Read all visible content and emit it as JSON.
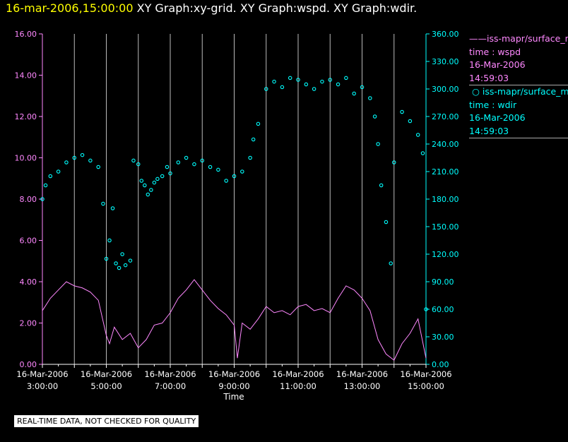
{
  "header": {
    "timestamp": "16-mar-2006,15:00:00",
    "graphs": "XY Graph:xy-grid.  XY Graph:wspd.  XY Graph:wdir."
  },
  "legend": [
    {
      "line1": "iss-mapr/surface_m",
      "line2": "time : wspd",
      "line3": "16-Mar-2006",
      "line4": "14:59:03",
      "color": "#ff88ff",
      "marker": "line"
    },
    {
      "line1": "iss-mapr/surface_m",
      "line2": "time : wdir",
      "line3": "16-Mar-2006",
      "line4": "14:59:03",
      "color": "#00ffff",
      "marker": "circle"
    }
  ],
  "note": "REAL-TIME DATA, NOT CHECKED FOR QUALITY",
  "chart_data": {
    "type": "scatter",
    "xlabel": "Time",
    "x_ticks": [
      {
        "date": "16-Mar-2006",
        "time": "3:00:00"
      },
      {
        "date": "16-Mar-2006",
        "time": "5:00:00"
      },
      {
        "date": "16-Mar-2006",
        "time": "7:00:00"
      },
      {
        "date": "16-Mar-2006",
        "time": "9:00:00"
      },
      {
        "date": "16-Mar-2006",
        "time": "11:00:00"
      },
      {
        "date": "16-Mar-2006",
        "time": "13:00:00"
      },
      {
        "date": "16-Mar-2006",
        "time": "15:00:00"
      }
    ],
    "xlim_hours": [
      3.0,
      15.0
    ],
    "grid": "vertical lines at each hour",
    "left_axis": {
      "ylim": [
        0,
        16
      ],
      "ticks": [
        "0.00",
        "2.00",
        "4.00",
        "6.00",
        "8.00",
        "10.00",
        "12.00",
        "14.00",
        "16.00"
      ],
      "color": "#ff88ff"
    },
    "right_axis": {
      "ylim": [
        0,
        360
      ],
      "ticks": [
        "0.00",
        "30.00",
        "60.00",
        "90.00",
        "120.00",
        "150.00",
        "180.00",
        "210.00",
        "240.00",
        "270.00",
        "300.00",
        "330.00",
        "360.00"
      ],
      "color": "#00ffff"
    },
    "series": [
      {
        "axis": "left",
        "style": "line",
        "color": "#ff88ff",
        "x": [
          3.0,
          3.25,
          3.5,
          3.75,
          4.0,
          4.25,
          4.5,
          4.75,
          5.0,
          5.1,
          5.25,
          5.5,
          5.75,
          6.0,
          6.25,
          6.5,
          6.75,
          7.0,
          7.25,
          7.5,
          7.75,
          8.0,
          8.25,
          8.5,
          8.75,
          9.0,
          9.1,
          9.25,
          9.5,
          9.75,
          10.0,
          10.25,
          10.5,
          10.75,
          11.0,
          11.25,
          11.5,
          11.75,
          12.0,
          12.25,
          12.5,
          12.75,
          13.0,
          13.25,
          13.5,
          13.75,
          14.0,
          14.25,
          14.5,
          14.75,
          15.0
        ],
        "y": [
          2.6,
          3.2,
          3.6,
          4.0,
          3.8,
          3.7,
          3.5,
          3.1,
          1.4,
          1.0,
          1.8,
          1.2,
          1.5,
          0.8,
          1.2,
          1.9,
          2.0,
          2.5,
          3.2,
          3.6,
          4.1,
          3.6,
          3.1,
          2.7,
          2.4,
          1.9,
          0.3,
          2.0,
          1.7,
          2.2,
          2.8,
          2.5,
          2.6,
          2.4,
          2.8,
          2.9,
          2.6,
          2.7,
          2.5,
          3.2,
          3.8,
          3.6,
          3.2,
          2.6,
          1.2,
          0.5,
          0.2,
          1.0,
          1.5,
          2.2,
          0.3
        ]
      },
      {
        "axis": "right",
        "style": "circle",
        "color": "#00ffff",
        "x": [
          3.0,
          3.1,
          3.25,
          3.5,
          3.75,
          4.0,
          4.25,
          4.5,
          4.75,
          4.9,
          5.0,
          5.1,
          5.2,
          5.3,
          5.4,
          5.5,
          5.6,
          5.75,
          5.85,
          6.0,
          6.1,
          6.2,
          6.3,
          6.4,
          6.5,
          6.6,
          6.75,
          6.9,
          7.0,
          7.25,
          7.5,
          7.75,
          8.0,
          8.25,
          8.5,
          8.75,
          9.0,
          9.25,
          9.5,
          9.6,
          9.75,
          10.0,
          10.25,
          10.5,
          10.75,
          11.0,
          11.25,
          11.5,
          11.75,
          12.0,
          12.25,
          12.5,
          12.75,
          13.0,
          13.25,
          13.4,
          13.5,
          13.6,
          13.75,
          13.9,
          14.0,
          14.25,
          14.5,
          14.75,
          14.9,
          15.0
        ],
        "y": [
          180,
          195,
          205,
          210,
          220,
          225,
          228,
          222,
          215,
          175,
          115,
          135,
          170,
          110,
          105,
          120,
          108,
          113,
          222,
          218,
          200,
          195,
          185,
          190,
          198,
          202,
          205,
          215,
          208,
          220,
          225,
          218,
          222,
          215,
          212,
          200,
          205,
          210,
          225,
          245,
          262,
          300,
          308,
          302,
          312,
          310,
          305,
          300,
          308,
          310,
          305,
          312,
          295,
          302,
          290,
          270,
          240,
          195,
          155,
          110,
          220,
          275,
          265,
          250,
          230,
          60
        ]
      }
    ]
  }
}
